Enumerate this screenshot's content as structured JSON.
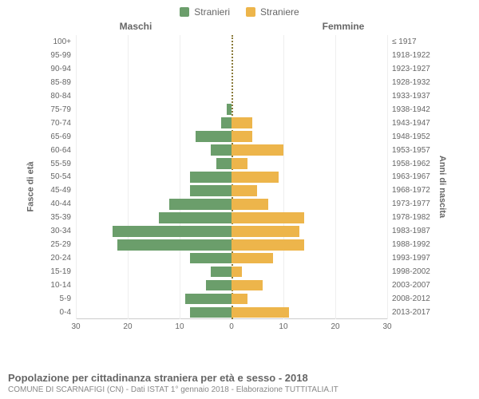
{
  "legend": {
    "male": {
      "label": "Stranieri",
      "color": "#6b9e6b"
    },
    "female": {
      "label": "Straniere",
      "color": "#edb54b"
    }
  },
  "headers": {
    "male": "Maschi",
    "female": "Femmine"
  },
  "axes": {
    "leftLabel": "Fasce di età",
    "rightLabel": "Anni di nascita",
    "xMax": 30,
    "xTicks": [
      30,
      20,
      10,
      0,
      10,
      20,
      30
    ],
    "gridStep": 10,
    "gridColor": "#eeeeee",
    "centerLineColor": "#8a7a3a"
  },
  "chart": {
    "type": "population-pyramid",
    "background": "#ffffff",
    "barHeightPct": 80,
    "rows": [
      {
        "age": "100+",
        "birth": "≤ 1917",
        "male": 0,
        "female": 0
      },
      {
        "age": "95-99",
        "birth": "1918-1922",
        "male": 0,
        "female": 0
      },
      {
        "age": "90-94",
        "birth": "1923-1927",
        "male": 0,
        "female": 0
      },
      {
        "age": "85-89",
        "birth": "1928-1932",
        "male": 0,
        "female": 0
      },
      {
        "age": "80-84",
        "birth": "1933-1937",
        "male": 0,
        "female": 0
      },
      {
        "age": "75-79",
        "birth": "1938-1942",
        "male": 1,
        "female": 0
      },
      {
        "age": "70-74",
        "birth": "1943-1947",
        "male": 2,
        "female": 4
      },
      {
        "age": "65-69",
        "birth": "1948-1952",
        "male": 7,
        "female": 4
      },
      {
        "age": "60-64",
        "birth": "1953-1957",
        "male": 4,
        "female": 10
      },
      {
        "age": "55-59",
        "birth": "1958-1962",
        "male": 3,
        "female": 3
      },
      {
        "age": "50-54",
        "birth": "1963-1967",
        "male": 8,
        "female": 9
      },
      {
        "age": "45-49",
        "birth": "1968-1972",
        "male": 8,
        "female": 5
      },
      {
        "age": "40-44",
        "birth": "1973-1977",
        "male": 12,
        "female": 7
      },
      {
        "age": "35-39",
        "birth": "1978-1982",
        "male": 14,
        "female": 14
      },
      {
        "age": "30-34",
        "birth": "1983-1987",
        "male": 23,
        "female": 13
      },
      {
        "age": "25-29",
        "birth": "1988-1992",
        "male": 22,
        "female": 14
      },
      {
        "age": "20-24",
        "birth": "1993-1997",
        "male": 8,
        "female": 8
      },
      {
        "age": "15-19",
        "birth": "1998-2002",
        "male": 4,
        "female": 2
      },
      {
        "age": "10-14",
        "birth": "2003-2007",
        "male": 5,
        "female": 6
      },
      {
        "age": "5-9",
        "birth": "2008-2012",
        "male": 9,
        "female": 3
      },
      {
        "age": "0-4",
        "birth": "2013-2017",
        "male": 8,
        "female": 11
      }
    ]
  },
  "footer": {
    "title": "Popolazione per cittadinanza straniera per età e sesso - 2018",
    "subtitle": "COMUNE DI SCARNAFIGI (CN) - Dati ISTAT 1° gennaio 2018 - Elaborazione TUTTITALIA.IT"
  }
}
